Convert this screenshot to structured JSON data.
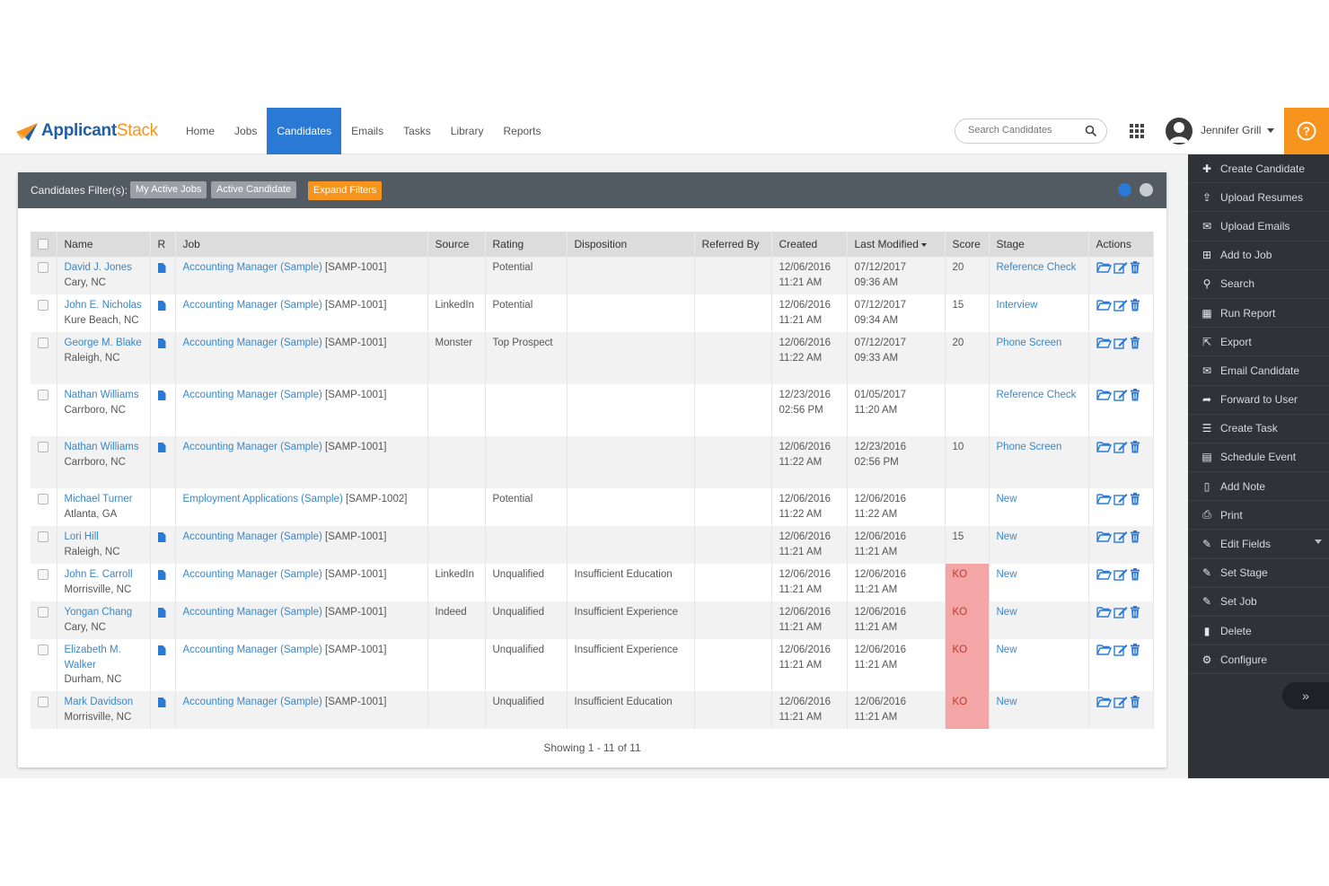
{
  "app": {
    "logo_primary": "Applicant",
    "logo_secondary": "Stack",
    "brand_blue": "#1f5fa8",
    "brand_orange": "#f7941d"
  },
  "nav": {
    "items": [
      "Home",
      "Jobs",
      "Candidates",
      "Emails",
      "Tasks",
      "Library",
      "Reports"
    ],
    "active": "Candidates"
  },
  "search": {
    "placeholder": "Search Candidates",
    "icon": "search-icon"
  },
  "user": {
    "name": "Jennifer Grill"
  },
  "filters": {
    "label": "Candidates Filter(s):",
    "chips": [
      "My Active Jobs",
      "Active Candidate"
    ],
    "expand_label": "Expand Filters"
  },
  "table": {
    "headers": [
      "Name",
      "R",
      "Job",
      "Source",
      "Rating",
      "Disposition",
      "Referred By",
      "Created",
      "Last Modified",
      "Score",
      "Stage",
      "Actions"
    ],
    "sorted_column": "Last Modified",
    "rows": [
      {
        "name": "David J. Jones",
        "location": "Cary, NC",
        "resume": true,
        "job": "Accounting Manager (Sample)",
        "job_code": "[SAMP-1001]",
        "source": "",
        "rating": "Potential",
        "disposition": "",
        "referred_by": "",
        "created_date": "12/06/2016",
        "created_time": "11:21 AM",
        "modified_date": "07/12/2017",
        "modified_time": "09:36 AM",
        "score": "20",
        "ko": false,
        "stage": "Reference Check"
      },
      {
        "name": "John E. Nicholas",
        "location": "Kure Beach, NC",
        "resume": true,
        "job": "Accounting Manager (Sample)",
        "job_code": "[SAMP-1001]",
        "source": "LinkedIn",
        "rating": "Potential",
        "disposition": "",
        "referred_by": "",
        "created_date": "12/06/2016",
        "created_time": "11:21 AM",
        "modified_date": "07/12/2017",
        "modified_time": "09:34 AM",
        "score": "15",
        "ko": false,
        "stage": "Interview"
      },
      {
        "name": "George M. Blake",
        "location": "Raleigh, NC",
        "resume": true,
        "job": "Accounting Manager (Sample)",
        "job_code": "[SAMP-1001]",
        "source": "Monster",
        "rating": "Top Prospect",
        "disposition": "",
        "referred_by": "",
        "created_date": "12/06/2016",
        "created_time": "11:22 AM",
        "modified_date": "07/12/2017",
        "modified_time": "09:33 AM",
        "score": "20",
        "ko": false,
        "stage": "Phone Screen"
      },
      {
        "name": "Nathan Williams",
        "location": "Carrboro, NC",
        "resume": true,
        "job": "Accounting Manager (Sample)",
        "job_code": "[SAMP-1001]",
        "source": "",
        "rating": "",
        "disposition": "",
        "referred_by": "",
        "created_date": "12/23/2016",
        "created_time": "02:56 PM",
        "modified_date": "01/05/2017",
        "modified_time": "11:20 AM",
        "score": "",
        "ko": false,
        "stage": "Reference Check"
      },
      {
        "name": "Nathan Williams",
        "location": "Carrboro, NC",
        "resume": true,
        "job": "Accounting Manager (Sample)",
        "job_code": "[SAMP-1001]",
        "source": "",
        "rating": "",
        "disposition": "",
        "referred_by": "",
        "created_date": "12/06/2016",
        "created_time": "11:22 AM",
        "modified_date": "12/23/2016",
        "modified_time": "02:56 PM",
        "score": "10",
        "ko": false,
        "stage": "Phone Screen"
      },
      {
        "name": "Michael Turner",
        "location": "Atlanta, GA",
        "resume": false,
        "job": "Employment Applications (Sample)",
        "job_code": "[SAMP-1002]",
        "source": "",
        "rating": "Potential",
        "disposition": "",
        "referred_by": "",
        "created_date": "12/06/2016",
        "created_time": "11:22 AM",
        "modified_date": "12/06/2016",
        "modified_time": "11:22 AM",
        "score": "",
        "ko": false,
        "stage": "New"
      },
      {
        "name": "Lori Hill",
        "location": "Raleigh, NC",
        "resume": true,
        "job": "Accounting Manager (Sample)",
        "job_code": "[SAMP-1001]",
        "source": "",
        "rating": "",
        "disposition": "",
        "referred_by": "",
        "created_date": "12/06/2016",
        "created_time": "11:21 AM",
        "modified_date": "12/06/2016",
        "modified_time": "11:21 AM",
        "score": "15",
        "ko": false,
        "stage": "New"
      },
      {
        "name": "John E. Carroll",
        "location": "Morrisville, NC",
        "resume": true,
        "job": "Accounting Manager (Sample)",
        "job_code": "[SAMP-1001]",
        "source": "LinkedIn",
        "rating": "Unqualified",
        "disposition": "Insufficient Education",
        "referred_by": "",
        "created_date": "12/06/2016",
        "created_time": "11:21 AM",
        "modified_date": "12/06/2016",
        "modified_time": "11:21 AM",
        "score": "KO",
        "ko": true,
        "stage": "New"
      },
      {
        "name": "Yongan Chang",
        "location": "Cary, NC",
        "resume": true,
        "job": "Accounting Manager (Sample)",
        "job_code": "[SAMP-1001]",
        "source": "Indeed",
        "rating": "Unqualified",
        "disposition": "Insufficient Experience",
        "referred_by": "",
        "created_date": "12/06/2016",
        "created_time": "11:21 AM",
        "modified_date": "12/06/2016",
        "modified_time": "11:21 AM",
        "score": "KO",
        "ko": true,
        "stage": "New"
      },
      {
        "name": "Elizabeth M. Walker",
        "location": "Durham, NC",
        "resume": true,
        "job": "Accounting Manager (Sample)",
        "job_code": "[SAMP-1001]",
        "source": "",
        "rating": "Unqualified",
        "disposition": "Insufficient Experience",
        "referred_by": "",
        "created_date": "12/06/2016",
        "created_time": "11:21 AM",
        "modified_date": "12/06/2016",
        "modified_time": "11:21 AM",
        "score": "KO",
        "ko": true,
        "stage": "New"
      },
      {
        "name": "Mark Davidson",
        "location": "Morrisville, NC",
        "resume": true,
        "job": "Accounting Manager (Sample)",
        "job_code": "[SAMP-1001]",
        "source": "",
        "rating": "Unqualified",
        "disposition": "Insufficient Education",
        "referred_by": "",
        "created_date": "12/06/2016",
        "created_time": "11:21 AM",
        "modified_date": "12/06/2016",
        "modified_time": "11:21 AM",
        "score": "KO",
        "ko": true,
        "stage": "New"
      }
    ],
    "footer": "Showing 1 - 11 of 11"
  },
  "sidebar": {
    "items": [
      {
        "label": "Create Candidate",
        "icon": "plus-icon"
      },
      {
        "label": "Upload Resumes",
        "icon": "upload-icon"
      },
      {
        "label": "Upload Emails",
        "icon": "envelope-icon"
      },
      {
        "label": "Add to Job",
        "icon": "plus-square-icon"
      },
      {
        "label": "Search",
        "icon": "search-icon"
      },
      {
        "label": "Run Report",
        "icon": "table-icon"
      },
      {
        "label": "Export",
        "icon": "export-icon"
      },
      {
        "label": "Email Candidate",
        "icon": "envelope-icon"
      },
      {
        "label": "Forward to User",
        "icon": "share-icon"
      },
      {
        "label": "Create Task",
        "icon": "tasks-icon"
      },
      {
        "label": "Schedule Event",
        "icon": "calendar-icon"
      },
      {
        "label": "Add Note",
        "icon": "note-icon"
      },
      {
        "label": "Print",
        "icon": "print-icon"
      },
      {
        "label": "Edit Fields",
        "icon": "edit-icon",
        "dropdown": true
      },
      {
        "label": "Set Stage",
        "icon": "edit-icon"
      },
      {
        "label": "Set Job",
        "icon": "edit-icon"
      },
      {
        "label": "Delete",
        "icon": "trash-icon"
      },
      {
        "label": "Configure",
        "icon": "gear-icon"
      }
    ]
  },
  "colors": {
    "nav_active": "#2a7ad5",
    "sidebar_bg": "#2f3338",
    "filterbar_bg": "#525a62",
    "ko_bg": "#f4a5a5",
    "link": "#3a86c8",
    "help_bg": "#f7941d"
  }
}
